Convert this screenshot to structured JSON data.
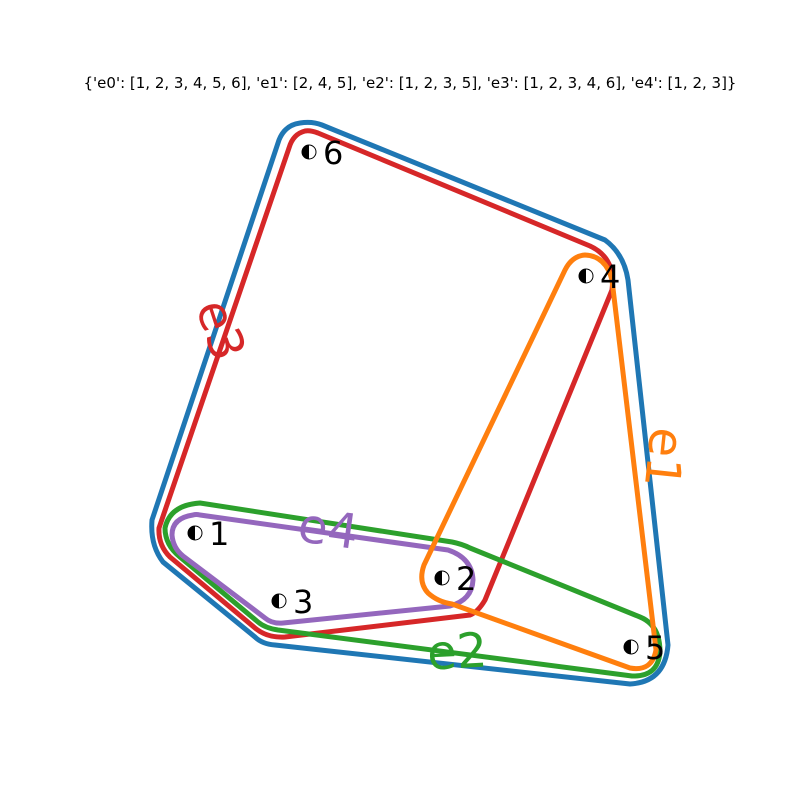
{
  "title": "{'e0': [1, 2, 3, 4, 5, 6], 'e1': [2, 4, 5], 'e2': [1, 2, 3, 5], 'e3': [1, 2, 3, 4, 6], 'e4': [1, 2, 3]}",
  "nodes": [
    {
      "id": "1",
      "label": "1"
    },
    {
      "id": "2",
      "label": "2"
    },
    {
      "id": "3",
      "label": "3"
    },
    {
      "id": "4",
      "label": "4"
    },
    {
      "id": "5",
      "label": "5"
    },
    {
      "id": "6",
      "label": "6"
    }
  ],
  "hyperedges": [
    {
      "id": "e0",
      "label": "",
      "members": [
        "1",
        "2",
        "3",
        "4",
        "5",
        "6"
      ],
      "color": "#1f77b4"
    },
    {
      "id": "e1",
      "label": "e1",
      "members": [
        "2",
        "4",
        "5"
      ],
      "color": "#ff7f0e"
    },
    {
      "id": "e2",
      "label": "e2",
      "members": [
        "1",
        "2",
        "3",
        "5"
      ],
      "color": "#2ca02c"
    },
    {
      "id": "e3",
      "label": "e3",
      "members": [
        "1",
        "2",
        "3",
        "4",
        "6"
      ],
      "color": "#d62728"
    },
    {
      "id": "e4",
      "label": "e4",
      "members": [
        "1",
        "2",
        "3"
      ],
      "color": "#9467bd"
    }
  ]
}
